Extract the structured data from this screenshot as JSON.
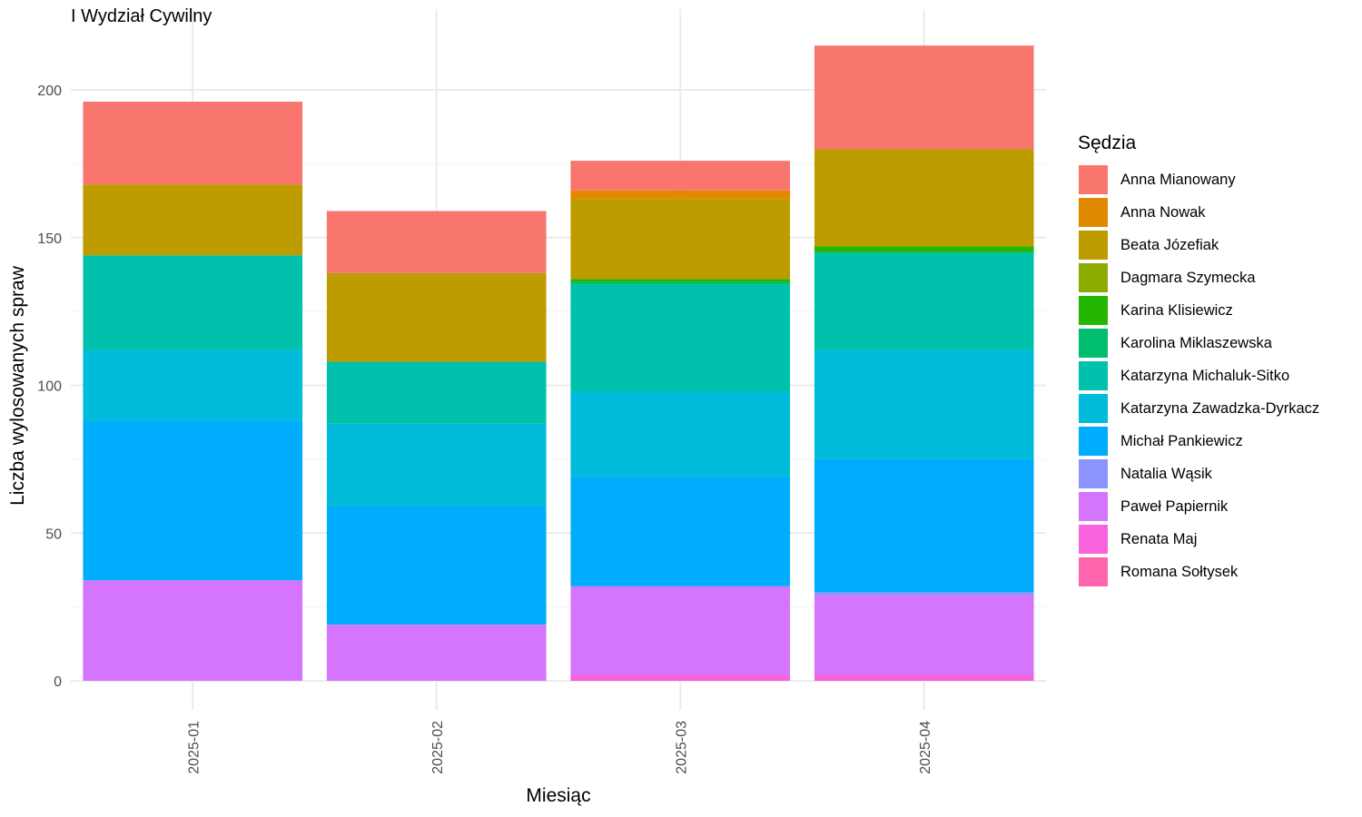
{
  "chart_data": {
    "type": "bar",
    "stacked": true,
    "title": "I Wydział Cywilny",
    "xlabel": "Miesiąc",
    "ylabel": "Liczba wylosowanych spraw",
    "legend_title": "Sędzia",
    "legend_position": "right",
    "grid": true,
    "ylim": [
      0,
      220
    ],
    "yticks": [
      0,
      50,
      100,
      150,
      200
    ],
    "categories": [
      "2025-01",
      "2025-02",
      "2025-03",
      "2025-04"
    ],
    "series": [
      {
        "name": "Anna Mianowany",
        "color": "#F8766D",
        "values": [
          28,
          21,
          10,
          35
        ]
      },
      {
        "name": "Anna Nowak",
        "color": "#E18A00",
        "values": [
          0,
          0,
          3,
          0
        ]
      },
      {
        "name": "Beata Józefiak",
        "color": "#BE9C00",
        "values": [
          24,
          30,
          27,
          33
        ]
      },
      {
        "name": "Dagmara Szymecka",
        "color": "#8CAB00",
        "values": [
          0,
          0,
          0,
          0
        ]
      },
      {
        "name": "Karina Klisiewicz",
        "color": "#24B700",
        "values": [
          0,
          0,
          1,
          2
        ]
      },
      {
        "name": "Karolina Miklaszewska",
        "color": "#00BE70",
        "values": [
          0,
          0,
          1,
          0
        ]
      },
      {
        "name": "Katarzyna Michaluk-Sitko",
        "color": "#00C1AB",
        "values": [
          32,
          21,
          36,
          33
        ]
      },
      {
        "name": "Katarzyna Zawadzka-Dyrkacz",
        "color": "#00BBDA",
        "values": [
          24,
          28,
          29,
          37
        ]
      },
      {
        "name": "Michał Pankiewicz",
        "color": "#00ACFC",
        "values": [
          54,
          40,
          37,
          45
        ]
      },
      {
        "name": "Natalia Wąsik",
        "color": "#8B93FF",
        "values": [
          0,
          0,
          0,
          1
        ]
      },
      {
        "name": "Paweł Papiernik",
        "color": "#D575FE",
        "values": [
          34,
          19,
          30,
          27
        ]
      },
      {
        "name": "Renata Maj",
        "color": "#F962DD",
        "values": [
          0,
          0,
          2,
          2
        ]
      },
      {
        "name": "Romana Sołtysek",
        "color": "#FF65AC",
        "values": [
          0,
          0,
          0,
          0
        ]
      }
    ]
  }
}
